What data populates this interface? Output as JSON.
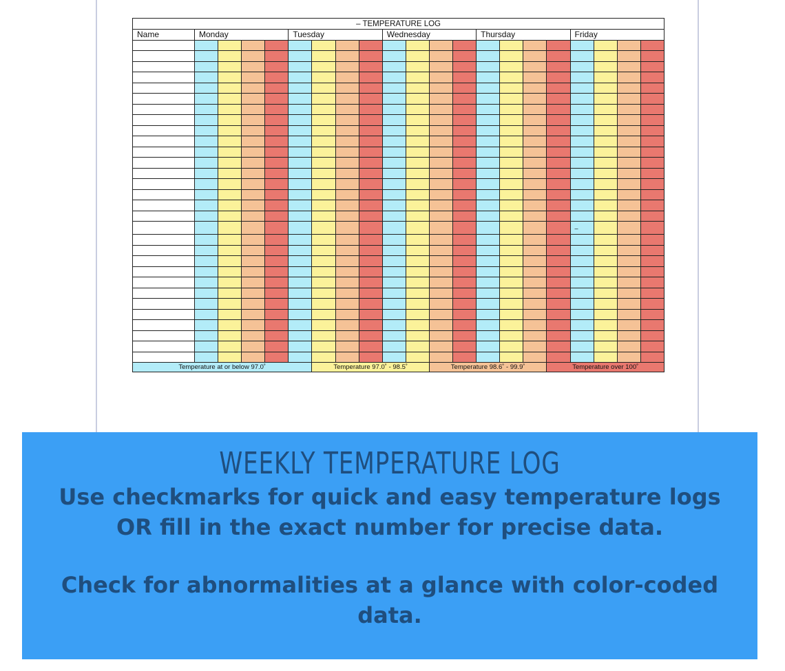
{
  "log": {
    "title": "–  TEMPERATURE LOG",
    "name_label": "Name",
    "days": [
      "Monday",
      "Tuesday",
      "Wednesday",
      "Thursday",
      "Friday"
    ],
    "row_count": 30,
    "stray_mark": "–",
    "legend": [
      {
        "label": "Temperature at or below 97.0˚",
        "color": "#b3ecf8"
      },
      {
        "label": "Temperature 97.0˚ - 98.5˚",
        "color": "#fbf29a"
      },
      {
        "label": "Temperature 98.6˚ - 99.9˚",
        "color": "#f5c296"
      },
      {
        "label": "Temperature over 100˚",
        "color": "#e9786f"
      }
    ]
  },
  "banner": {
    "title": "WEEKLY TEMPERATURE LOG",
    "line1": "Use checkmarks for quick and easy temperature logs",
    "line2": "OR fill in the exact number for precise data.",
    "line3": "Check for abnormalities at a glance with color-coded",
    "line4": "data.",
    "background": "#3b9ff5",
    "text_color": "#1f4e7e"
  }
}
